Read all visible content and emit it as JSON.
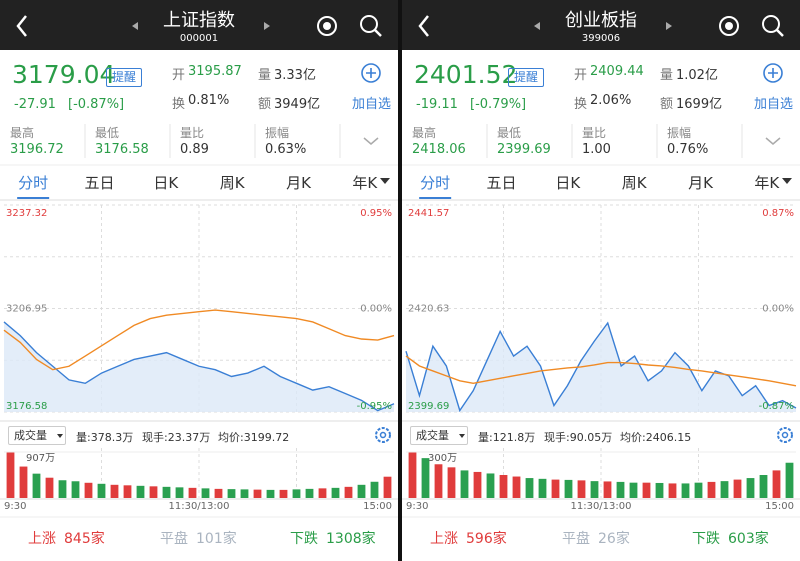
{
  "panels": [
    {
      "header": {
        "title": "上证指数",
        "code": "000001"
      },
      "quote": {
        "price": "3179.04",
        "color": "#2a9d48",
        "alert": "提醒",
        "change": "-27.91",
        "change_pct": "[-0.87%]",
        "fields": [
          {
            "label": "开",
            "value": "3195.87",
            "color": "#2a9d48"
          },
          {
            "label": "量",
            "value": "3.33亿",
            "color": "#333333"
          },
          {
            "label": "换",
            "value": "0.81%",
            "color": "#333333"
          },
          {
            "label": "额",
            "value": "3949亿",
            "color": "#333333"
          }
        ],
        "add": "加自选"
      },
      "stats": [
        {
          "label": "最高",
          "value": "3196.72",
          "color": "#2a9d48"
        },
        {
          "label": "最低",
          "value": "3176.58",
          "color": "#2a9d48"
        },
        {
          "label": "量比",
          "value": "0.89",
          "color": "#333333"
        },
        {
          "label": "振幅",
          "value": "0.63%",
          "color": "#333333"
        }
      ],
      "tabs": [
        "分时",
        "五日",
        "日K",
        "周K",
        "月K",
        "年K"
      ],
      "chart": {
        "type": "line",
        "ylim": [
          3176.58,
          3237.32
        ],
        "yticks": [
          3237.32,
          3206.95,
          3176.58
        ],
        "y2lim": [
          -0.95,
          0.95
        ],
        "y2ticks": [
          {
            "value": 0.95,
            "label": "0.95%"
          },
          {
            "value": 0,
            "label": "0.00%"
          },
          {
            "value": -0.95,
            "label": "-0.95%"
          }
        ],
        "series": [
          {
            "color": "#3a7fd5",
            "values": [
              3203,
              3199,
              3194,
              3190,
              3186,
              3185,
              3188,
              3190,
              3192,
              3193,
              3194,
              3192,
              3190,
              3189,
              3187,
              3188,
              3190,
              3187,
              3185,
              3183,
              3184,
              3182,
              3180,
              3177,
              3179
            ]
          },
          {
            "color": "#f08a24",
            "values": [
              3200.6,
              3197,
              3192,
              3189,
              3190,
              3193,
              3196,
              3199,
              3202,
              3204,
              3205,
              3205.5,
              3206,
              3206.5,
              3206,
              3205.5,
              3205,
              3204.5,
              3204,
              3203,
              3201,
              3199,
              3198,
              3197.7,
              3199
            ]
          }
        ]
      },
      "volume_bar": {
        "button": "成交量",
        "items": [
          "量:378.3万",
          "现手:23.37万",
          "均价:3199.72"
        ]
      },
      "volume": {
        "type": "bar",
        "ylim": [
          0,
          907
        ],
        "yticks": [
          {
            "value": 907,
            "label": "907万"
          }
        ],
        "values": [
          907,
          620,
          480,
          400,
          350,
          330,
          300,
          280,
          260,
          250,
          240,
          230,
          220,
          210,
          200,
          190,
          180,
          175,
          170,
          165,
          160,
          160,
          170,
          180,
          190,
          200,
          220,
          260,
          320,
          420
        ],
        "colors": [
          "#e03c3c",
          "#e03c3c",
          "#2aa050",
          "#e03c3c",
          "#2aa050",
          "#2aa050",
          "#e03c3c",
          "#2aa050",
          "#e03c3c",
          "#e03c3c",
          "#2aa050",
          "#e03c3c",
          "#2aa050",
          "#2aa050",
          "#e03c3c",
          "#2aa050",
          "#e03c3c",
          "#2aa050",
          "#2aa050",
          "#e03c3c",
          "#2aa050",
          "#e03c3c",
          "#2aa050",
          "#2aa050",
          "#e03c3c",
          "#2aa050",
          "#e03c3c",
          "#2aa050",
          "#2aa050",
          "#e03c3c"
        ]
      },
      "xlabels": [
        "9:30",
        "11:30/13:00",
        "15:00"
      ],
      "footer": [
        {
          "label": "上涨",
          "value": "845家",
          "color": "#e03c3c"
        },
        {
          "label": "平盘",
          "value": "101家",
          "color": "#aab4c0"
        },
        {
          "label": "下跌",
          "value": "1308家",
          "color": "#2a9d48"
        }
      ]
    },
    {
      "header": {
        "title": "创业板指",
        "code": "399006"
      },
      "quote": {
        "price": "2401.52",
        "color": "#2a9d48",
        "alert": "提醒",
        "change": "-19.11",
        "change_pct": "[-0.79%]",
        "fields": [
          {
            "label": "开",
            "value": "2409.44",
            "color": "#2a9d48"
          },
          {
            "label": "量",
            "value": "1.02亿",
            "color": "#333333"
          },
          {
            "label": "换",
            "value": "2.06%",
            "color": "#333333"
          },
          {
            "label": "额",
            "value": "1699亿",
            "color": "#333333"
          }
        ],
        "add": "加自选"
      },
      "stats": [
        {
          "label": "最高",
          "value": "2418.06",
          "color": "#2a9d48"
        },
        {
          "label": "最低",
          "value": "2399.69",
          "color": "#2a9d48"
        },
        {
          "label": "量比",
          "value": "1.00",
          "color": "#333333"
        },
        {
          "label": "振幅",
          "value": "0.76%",
          "color": "#333333"
        }
      ],
      "tabs": [
        "分时",
        "五日",
        "日K",
        "周K",
        "月K",
        "年K"
      ],
      "chart": {
        "type": "line",
        "ylim": [
          2399.69,
          2441.57
        ],
        "yticks": [
          2441.57,
          2420.63,
          2399.69
        ],
        "y2lim": [
          -0.87,
          0.87
        ],
        "y2ticks": [
          {
            "value": 0.87,
            "label": "0.87%"
          },
          {
            "value": 0,
            "label": "0.00%"
          },
          {
            "value": -0.87,
            "label": "-0.87%"
          }
        ],
        "series": [
          {
            "color": "#3a7fd5",
            "values": [
              2412,
              2403,
              2413,
              2409,
              2400,
              2404,
              2410,
              2416,
              2411,
              2413,
              2409,
              2401,
              2405,
              2410,
              2414,
              2417.7,
              2409,
              2411,
              2406,
              2408,
              2411.7,
              2409,
              2404,
              2408,
              2407,
              2403,
              2405,
              2401,
              2402,
              2400.5
            ]
          },
          {
            "color": "#f08a24",
            "values": [
              2411,
              2409,
              2408,
              2407,
              2406,
              2405.5,
              2406,
              2406.5,
              2407,
              2407.5,
              2408,
              2408.3,
              2408.6,
              2408.8,
              2409.2,
              2409.7,
              2409.7,
              2409.5,
              2409.2,
              2409,
              2408.7,
              2408.3,
              2408,
              2407.6,
              2407.2,
              2406.8,
              2406.4,
              2406,
              2405.5,
              2405
            ]
          }
        ]
      },
      "volume_bar": {
        "button": "成交量",
        "items": [
          "量:121.8万",
          "现手:90.05万",
          "均价:2406.15"
        ]
      },
      "volume": {
        "type": "bar",
        "ylim": [
          0,
          300
        ],
        "yticks": [
          {
            "value": 300,
            "label": "300万"
          }
        ],
        "values": [
          300,
          260,
          220,
          200,
          180,
          170,
          160,
          150,
          140,
          130,
          125,
          120,
          118,
          115,
          110,
          108,
          105,
          100,
          100,
          98,
          95,
          95,
          100,
          105,
          110,
          120,
          130,
          150,
          180,
          230
        ],
        "colors": [
          "#e03c3c",
          "#2aa050",
          "#e03c3c",
          "#e03c3c",
          "#2aa050",
          "#e03c3c",
          "#2aa050",
          "#e03c3c",
          "#e03c3c",
          "#2aa050",
          "#2aa050",
          "#e03c3c",
          "#2aa050",
          "#e03c3c",
          "#2aa050",
          "#e03c3c",
          "#2aa050",
          "#2aa050",
          "#e03c3c",
          "#2aa050",
          "#e03c3c",
          "#2aa050",
          "#2aa050",
          "#e03c3c",
          "#2aa050",
          "#e03c3c",
          "#2aa050",
          "#2aa050",
          "#e03c3c",
          "#2aa050"
        ]
      },
      "xlabels": [
        "9:30",
        "11:30/13:00",
        "15:00"
      ],
      "footer": [
        {
          "label": "上涨",
          "value": "596家",
          "color": "#e03c3c"
        },
        {
          "label": "平盘",
          "value": "26家",
          "color": "#aab4c0"
        },
        {
          "label": "下跌",
          "value": "603家",
          "color": "#2a9d48"
        }
      ]
    }
  ]
}
